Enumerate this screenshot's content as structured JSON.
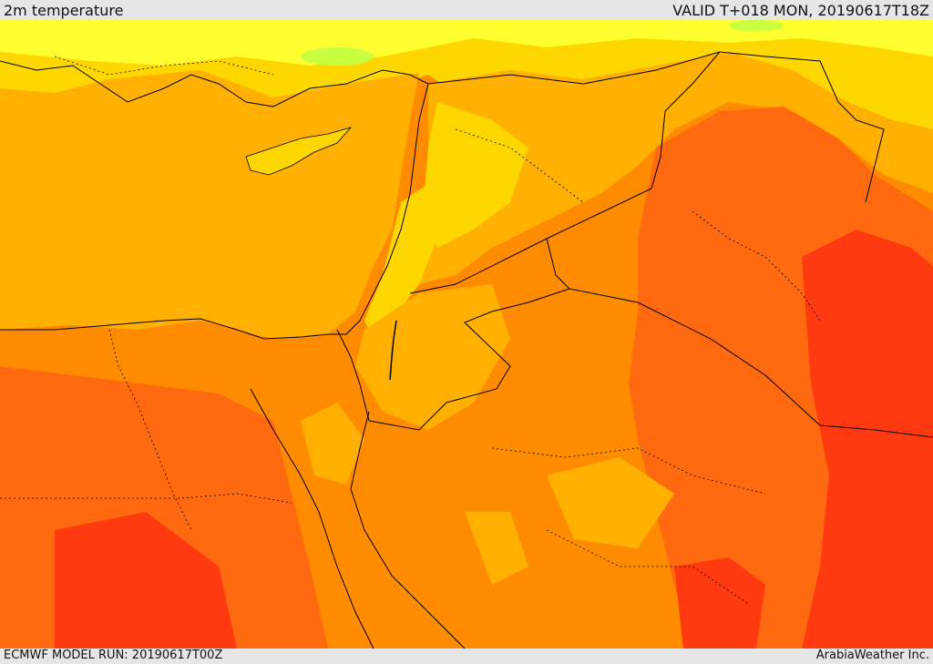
{
  "header": {
    "title": "2m temperature",
    "valid_time": "VALID T+018 MON, 20190617T18Z"
  },
  "footer": {
    "model_run": "ECMWF MODEL RUN: 20190617T00Z",
    "credit": "ArabiaWeather Inc."
  },
  "map": {
    "variable": "2m temperature",
    "region": "Eastern Mediterranean / Levant / Arabian Peninsula",
    "colors": {
      "yellow_light": "#ffff00",
      "yellow": "#ffd700",
      "amber": "#ffb000",
      "orange": "#ff8c00",
      "orange_red": "#ff6a10",
      "red": "#ff3a10",
      "green_tint": "#c8ff40",
      "border_line": "#000000"
    }
  }
}
